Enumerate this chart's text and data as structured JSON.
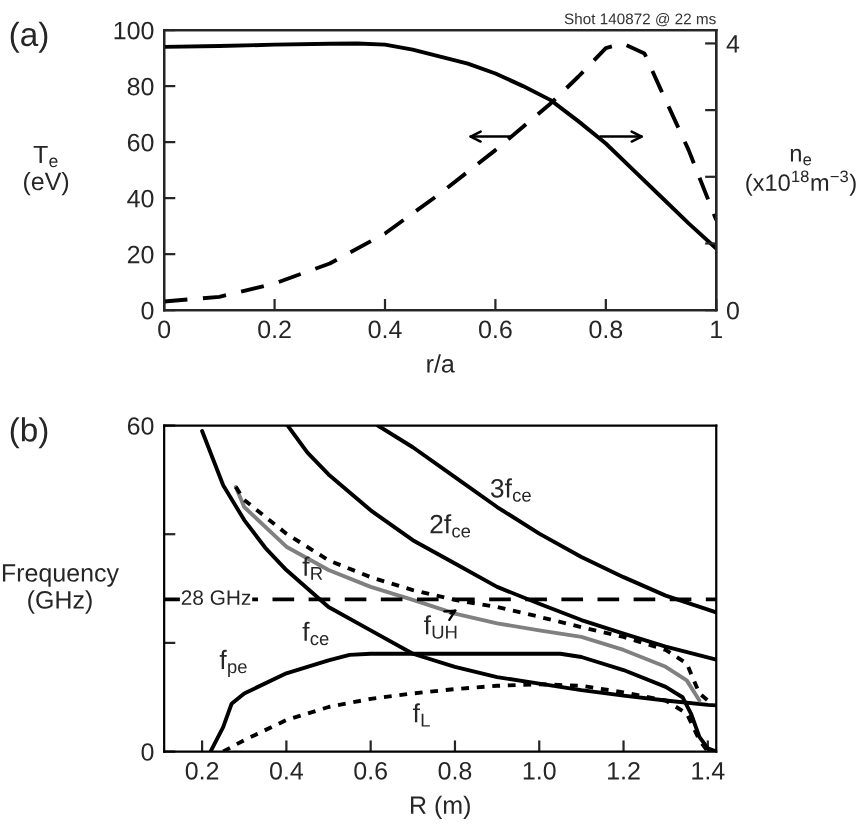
{
  "chart_data": [
    {
      "type": "line",
      "xlabel": "r/a",
      "ylabel": "T$_{e}$\n(eV)",
      "y2label": "n$_{e}$\n(x10$^{18}$m$^{−3}$)",
      "annotations": [
        "(a)",
        "Shot 140872 @ 22 ms"
      ],
      "xlim": [
        0,
        1
      ],
      "ylim": [
        0,
        100
      ],
      "y2lim": [
        0,
        4.2
      ],
      "xticks": [
        0,
        0.2,
        0.4,
        0.6,
        0.8,
        1
      ],
      "yticks": [
        0,
        20,
        40,
        60,
        80,
        100
      ],
      "y2ticks": [
        0,
        {
          "value": 1,
          "label": null
        },
        {
          "value": 2,
          "label": null
        },
        {
          "value": 3,
          "label": null
        },
        4
      ],
      "grid": false,
      "legend": false,
      "marker": "none",
      "series": [
        {
          "color": "#000000",
          "line_style": "solid",
          "x": [
            0,
            0.1,
            0.2,
            0.3,
            0.35,
            0.4,
            0.45,
            0.5,
            0.55,
            0.6,
            0.65,
            0.7,
            0.75,
            0.8,
            0.85,
            0.9,
            0.95,
            1.0
          ],
          "values": [
            94,
            94.3,
            94.8,
            95.1,
            95.2,
            94.8,
            93,
            90.5,
            88,
            84.5,
            80,
            75,
            67.5,
            59.5,
            50,
            40.5,
            31,
            22
          ]
        },
        {
          "color": "#000000",
          "line_style": "dashed",
          "axis": "y2",
          "x": [
            0,
            0.1,
            0.2,
            0.3,
            0.4,
            0.5,
            0.6,
            0.7,
            0.75,
            0.8,
            0.83,
            0.87,
            0.9,
            0.95,
            1.0
          ],
          "values": [
            0.13,
            0.2,
            0.4,
            0.7,
            1.15,
            1.75,
            2.4,
            3.1,
            3.5,
            3.93,
            4.0,
            3.85,
            3.3,
            2.4,
            1.35
          ]
        }
      ]
    },
    {
      "type": "line",
      "xlabel": "R (m)",
      "ylabel": "Frequency\n(GHz)",
      "annotations": [
        "(b)",
        "3f$_{ce}$",
        "2f$_{ce}$",
        "f$_{R}$",
        "f$_{ce}$",
        "f$_{UH}$",
        "f$_{pe}$",
        "f$_{L}$"
      ],
      "xlim": [
        0.11,
        1.42
      ],
      "ylim": [
        0,
        60
      ],
      "xticks": [
        0.2,
        0.4,
        0.6,
        0.8,
        {
          "value": 1.0,
          "label": "1.0"
        },
        1.2,
        1.4
      ],
      "yticks": [
        0,
        {
          "value": 20,
          "label": null
        },
        {
          "value": 40,
          "label": null
        },
        60
      ],
      "grid": false,
      "legend": false,
      "marker": "none",
      "ref_lines": [
        {
          "axis": "y",
          "value": 28,
          "label": "28 GHz",
          "line_style": "dashed",
          "color": "#000000"
        }
      ],
      "series": [
        {
          "color": "#000000",
          "line_style": "solid",
          "x": [
            0.2,
            0.25,
            0.3,
            0.35,
            0.4,
            0.5,
            0.6,
            0.7,
            0.8,
            0.9,
            1.0,
            1.1,
            1.2,
            1.3,
            1.4,
            1.42
          ],
          "values": [
            59,
            49,
            42.6,
            37.5,
            33.4,
            26.6,
            22.3,
            18,
            15.6,
            13.7,
            12.5,
            11.3,
            10.3,
            9.4,
            8.6,
            8.5
          ]
        },
        {
          "color": "#000000",
          "line_style": "solid",
          "x": [
            0.403,
            0.45,
            0.5,
            0.6,
            0.7,
            0.8,
            0.9,
            1.0,
            1.1,
            1.2,
            1.3,
            1.42
          ],
          "values": [
            60,
            55,
            51,
            44.4,
            38.9,
            34.6,
            30.3,
            27.2,
            24.2,
            21.7,
            19.3,
            16.9
          ]
        },
        {
          "color": "#000000",
          "line_style": "solid",
          "x": [
            0.617,
            0.7,
            0.8,
            0.9,
            1.0,
            1.1,
            1.2,
            1.3,
            1.42
          ],
          "values": [
            60,
            56,
            50.5,
            45,
            40.1,
            35.8,
            32.1,
            28.7,
            25.6
          ]
        },
        {
          "color": "#000000",
          "line_style": "solid",
          "x": [
            0.22,
            0.25,
            0.27,
            0.3,
            0.4,
            0.5,
            0.55,
            0.6,
            0.8,
            1.05,
            1.1,
            1.2,
            1.3,
            1.34,
            1.36,
            1.38,
            1.4,
            1.42
          ],
          "values": [
            0,
            4.5,
            8.8,
            10.7,
            14.4,
            16.8,
            17.8,
            18,
            18,
            18,
            17.4,
            15,
            11.9,
            10,
            7,
            2.7,
            0.6,
            0
          ]
        },
        {
          "color": "#000000",
          "line_style": "dotted",
          "x": [
            0.25,
            0.3,
            0.4,
            0.5,
            0.6,
            0.7,
            0.8,
            0.9,
            1.0,
            1.1,
            1.2,
            1.3,
            1.35,
            1.38,
            1.4
          ],
          "values": [
            0,
            2.1,
            5.8,
            8.2,
            9.7,
            10.7,
            11.5,
            12.1,
            12.4,
            12.1,
            10.9,
            9.4,
            7,
            2.1,
            0
          ]
        },
        {
          "color": "#808080",
          "line_style": "solid",
          "x": [
            0.28,
            0.3,
            0.4,
            0.5,
            0.6,
            0.7,
            0.8,
            0.9,
            1.0,
            1.1,
            1.2,
            1.3,
            1.35,
            1.38
          ],
          "values": [
            48.7,
            45,
            37.7,
            33.4,
            30.3,
            27.9,
            25.4,
            23.6,
            22.3,
            21.1,
            18.7,
            15.6,
            13.1,
            9.4
          ]
        },
        {
          "color": "#000000",
          "line_style": "dotted",
          "x": [
            0.28,
            0.3,
            0.4,
            0.5,
            0.6,
            0.7,
            0.8,
            0.9,
            1.0,
            1.1,
            1.2,
            1.3,
            1.35,
            1.38,
            1.4
          ],
          "values": [
            48.7,
            46.3,
            40.1,
            35.2,
            32.1,
            29.7,
            27.9,
            26.6,
            24.8,
            22.9,
            21.1,
            18.7,
            16.2,
            10.7,
            9.4
          ]
        }
      ]
    }
  ]
}
